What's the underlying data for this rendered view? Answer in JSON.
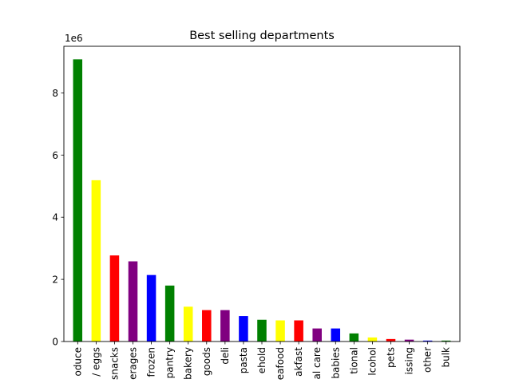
{
  "chart_data": {
    "type": "bar",
    "title": "Best selling departments",
    "xlabel": "",
    "ylabel": "",
    "y_offset_label": "1e6",
    "y_scale_factor": 1000000,
    "ylim": [
      0,
      9500000
    ],
    "yticks": [
      0,
      2,
      4,
      6,
      8
    ],
    "grid": false,
    "categories": [
      "produce",
      "dairy eggs",
      "snacks",
      "beverages",
      "frozen",
      "pantry",
      "bakery",
      "canned goods",
      "deli",
      "dry goods pasta",
      "household",
      "meat seafood",
      "breakfast",
      "personal care",
      "babies",
      "international",
      "alcohol",
      "pets",
      "missing",
      "other",
      "bulk"
    ],
    "tick_labels_visible": [
      "oduce",
      "/ eggs",
      "snacks",
      "erages",
      "frozen",
      "pantry",
      "bakery",
      "goods",
      "deli",
      "pasta",
      "ehold",
      "eafood",
      "akfast",
      "al care",
      "babies",
      "tional",
      "lcohol",
      "pets",
      "issing",
      "other",
      "bulk"
    ],
    "values": [
      9080000,
      5190000,
      2770000,
      2580000,
      2140000,
      1800000,
      1120000,
      1010000,
      1010000,
      820000,
      700000,
      680000,
      680000,
      420000,
      420000,
      260000,
      130000,
      80000,
      60000,
      30000,
      30000
    ],
    "colors": [
      "#008000",
      "#ffff00",
      "#ff0000",
      "#800080",
      "#0000ff",
      "#008000",
      "#ffff00",
      "#ff0000",
      "#800080",
      "#0000ff",
      "#008000",
      "#ffff00",
      "#ff0000",
      "#800080",
      "#0000ff",
      "#008000",
      "#ffff00",
      "#ff0000",
      "#800080",
      "#0000ff",
      "#008000"
    ]
  }
}
